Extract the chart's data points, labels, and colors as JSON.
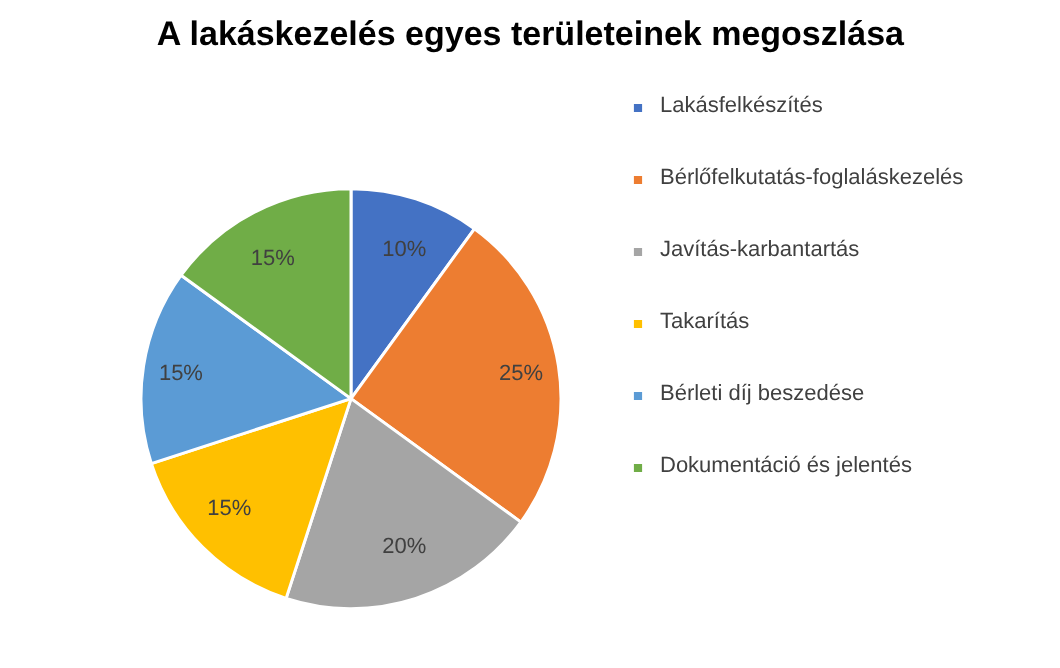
{
  "chart_data": {
    "type": "pie",
    "title": "A lakáskezelés egyes területeinek megoszlása",
    "categories": [
      "Lakásfelkészítés",
      "Bérlőfelkutatás-foglaláskezelés",
      "Javítás-karbantartás",
      "Takarítás",
      "Bérleti díj beszedése",
      "Dokumentáció és jelentés"
    ],
    "values": [
      10,
      25,
      20,
      15,
      15,
      15
    ],
    "colors": [
      "#4472c4",
      "#ed7d31",
      "#a5a5a5",
      "#ffc000",
      "#5b9bd5",
      "#70ad47"
    ],
    "value_labels": [
      "10%",
      "25%",
      "20%",
      "15%",
      "15%",
      "15%"
    ],
    "legend": "right"
  }
}
